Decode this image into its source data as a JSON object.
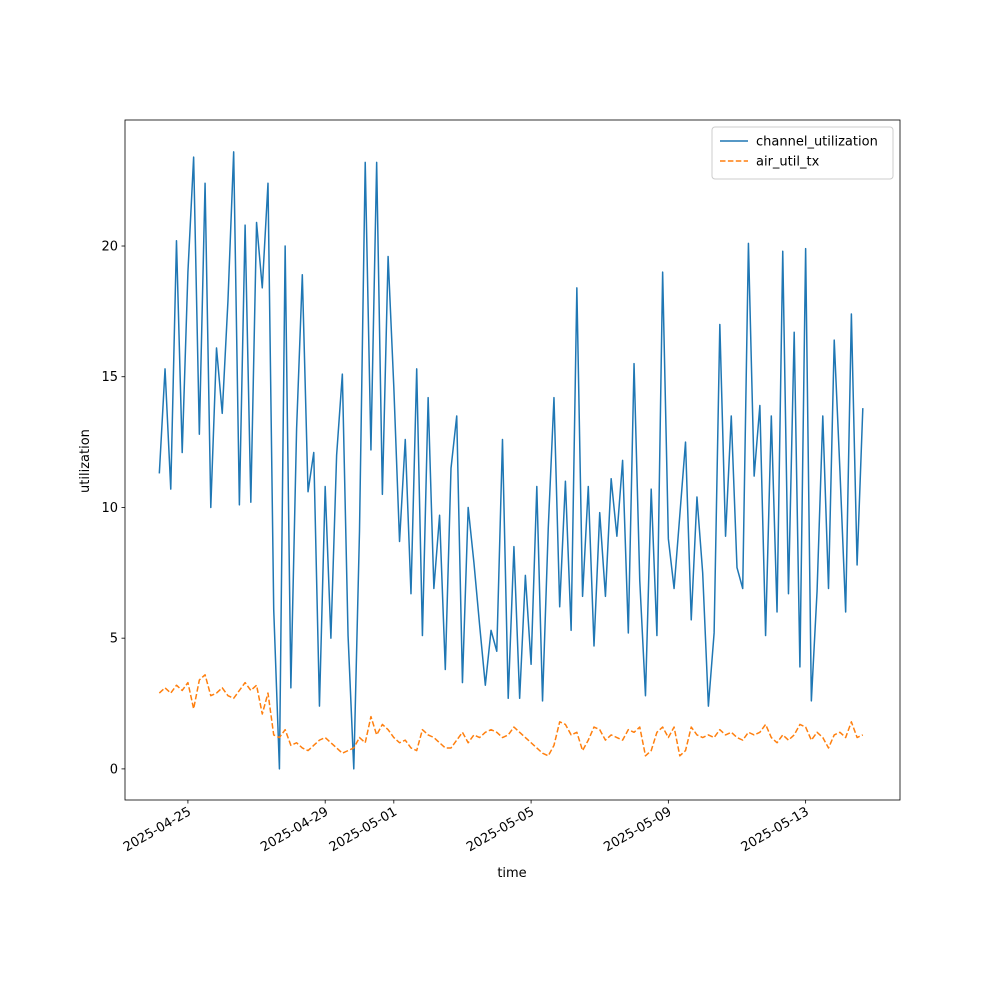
{
  "chart_data": {
    "type": "line",
    "xlabel": "time",
    "ylabel": "utilization",
    "x": [
      "2025-04-24T04:00",
      "2025-04-24T08:00",
      "2025-04-24T12:00",
      "2025-04-24T16:00",
      "2025-04-24T20:00",
      "2025-04-25T00:00",
      "2025-04-25T04:00",
      "2025-04-25T08:00",
      "2025-04-25T12:00",
      "2025-04-25T16:00",
      "2025-04-25T20:00",
      "2025-04-26T00:00",
      "2025-04-26T04:00",
      "2025-04-26T08:00",
      "2025-04-26T12:00",
      "2025-04-26T16:00",
      "2025-04-26T20:00",
      "2025-04-27T00:00",
      "2025-04-27T04:00",
      "2025-04-27T08:00",
      "2025-04-27T12:00",
      "2025-04-27T16:00",
      "2025-04-27T20:00",
      "2025-04-28T00:00",
      "2025-04-28T04:00",
      "2025-04-28T08:00",
      "2025-04-28T12:00",
      "2025-04-28T16:00",
      "2025-04-28T20:00",
      "2025-04-29T00:00",
      "2025-04-29T04:00",
      "2025-04-29T08:00",
      "2025-04-29T12:00",
      "2025-04-29T16:00",
      "2025-04-29T20:00",
      "2025-04-30T00:00",
      "2025-04-30T04:00",
      "2025-04-30T08:00",
      "2025-04-30T12:00",
      "2025-04-30T16:00",
      "2025-04-30T20:00",
      "2025-05-01T00:00",
      "2025-05-01T04:00",
      "2025-05-01T08:00",
      "2025-05-01T12:00",
      "2025-05-01T16:00",
      "2025-05-01T20:00",
      "2025-05-02T00:00",
      "2025-05-02T04:00",
      "2025-05-02T08:00",
      "2025-05-02T12:00",
      "2025-05-02T16:00",
      "2025-05-02T20:00",
      "2025-05-03T00:00",
      "2025-05-03T04:00",
      "2025-05-03T08:00",
      "2025-05-03T12:00",
      "2025-05-03T16:00",
      "2025-05-03T20:00",
      "2025-05-04T00:00",
      "2025-05-04T04:00",
      "2025-05-04T08:00",
      "2025-05-04T12:00",
      "2025-05-04T16:00",
      "2025-05-04T20:00",
      "2025-05-05T00:00",
      "2025-05-05T04:00",
      "2025-05-05T08:00",
      "2025-05-05T12:00",
      "2025-05-05T16:00",
      "2025-05-05T20:00",
      "2025-05-06T00:00",
      "2025-05-06T04:00",
      "2025-05-06T08:00",
      "2025-05-06T12:00",
      "2025-05-06T16:00",
      "2025-05-06T20:00",
      "2025-05-07T00:00",
      "2025-05-07T04:00",
      "2025-05-07T08:00",
      "2025-05-07T12:00",
      "2025-05-07T16:00",
      "2025-05-07T20:00",
      "2025-05-08T00:00",
      "2025-05-08T04:00",
      "2025-05-08T08:00",
      "2025-05-08T12:00",
      "2025-05-08T16:00",
      "2025-05-08T20:00",
      "2025-05-09T00:00",
      "2025-05-09T04:00",
      "2025-05-09T08:00",
      "2025-05-09T12:00",
      "2025-05-09T16:00",
      "2025-05-09T20:00",
      "2025-05-10T00:00",
      "2025-05-10T04:00",
      "2025-05-10T08:00",
      "2025-05-10T12:00",
      "2025-05-10T16:00",
      "2025-05-10T20:00",
      "2025-05-11T00:00",
      "2025-05-11T04:00",
      "2025-05-11T08:00",
      "2025-05-11T12:00",
      "2025-05-11T16:00",
      "2025-05-11T20:00",
      "2025-05-12T00:00",
      "2025-05-12T04:00",
      "2025-05-12T08:00",
      "2025-05-12T12:00",
      "2025-05-12T16:00",
      "2025-05-12T20:00",
      "2025-05-13T00:00",
      "2025-05-13T04:00",
      "2025-05-13T08:00",
      "2025-05-13T12:00",
      "2025-05-13T16:00",
      "2025-05-13T20:00",
      "2025-05-14T00:00",
      "2025-05-14T04:00",
      "2025-05-14T08:00",
      "2025-05-14T12:00",
      "2025-05-14T16:00"
    ],
    "series": [
      {
        "name": "channel_utilization",
        "color": "#1f77b4",
        "linestyle": "solid",
        "values": [
          11.3,
          15.3,
          10.7,
          20.2,
          12.1,
          19.0,
          23.4,
          12.8,
          22.4,
          10.0,
          16.1,
          13.6,
          17.9,
          23.6,
          10.1,
          20.8,
          10.2,
          20.9,
          18.4,
          22.4,
          6.1,
          0.0,
          20.0,
          3.1,
          13.0,
          18.9,
          10.6,
          12.1,
          2.4,
          10.8,
          5.0,
          12.0,
          15.1,
          5.1,
          0.0,
          9.1,
          23.2,
          12.2,
          23.2,
          10.5,
          19.6,
          14.6,
          8.7,
          12.6,
          6.7,
          15.3,
          5.1,
          14.2,
          6.9,
          9.7,
          3.8,
          11.5,
          13.5,
          3.3,
          10.0,
          7.9,
          5.5,
          3.2,
          5.3,
          4.5,
          12.6,
          2.7,
          8.5,
          2.7,
          7.4,
          4.0,
          10.8,
          2.6,
          9.2,
          14.2,
          6.2,
          11.0,
          5.3,
          18.4,
          6.6,
          10.8,
          4.7,
          9.8,
          6.6,
          11.1,
          8.9,
          11.8,
          5.2,
          15.5,
          7.2,
          2.8,
          10.7,
          5.1,
          19.0,
          8.8,
          6.9,
          9.7,
          12.5,
          5.7,
          10.4,
          7.5,
          2.4,
          5.2,
          17.0,
          8.9,
          13.5,
          7.7,
          6.9,
          20.1,
          11.2,
          13.9,
          5.1,
          13.5,
          6.0,
          19.8,
          6.7,
          16.7,
          3.9,
          19.9,
          2.6,
          6.8,
          13.5,
          6.9,
          16.4,
          11.4,
          6.0,
          17.4,
          7.8,
          13.8
        ]
      },
      {
        "name": "air_util_tx",
        "color": "#ff7f0e",
        "linestyle": "dashed",
        "values": [
          2.9,
          3.1,
          2.9,
          3.2,
          3.0,
          3.3,
          2.3,
          3.4,
          3.6,
          2.8,
          2.9,
          3.1,
          2.8,
          2.7,
          3.0,
          3.3,
          3.0,
          3.2,
          2.1,
          2.9,
          1.3,
          1.2,
          1.5,
          0.9,
          1.0,
          0.8,
          0.7,
          0.9,
          1.1,
          1.2,
          1.0,
          0.8,
          0.6,
          0.7,
          0.8,
          1.2,
          1.0,
          2.0,
          1.3,
          1.7,
          1.5,
          1.2,
          1.0,
          1.1,
          0.8,
          0.7,
          1.5,
          1.3,
          1.2,
          1.0,
          0.8,
          0.8,
          1.1,
          1.4,
          1.0,
          1.3,
          1.2,
          1.4,
          1.5,
          1.4,
          1.2,
          1.3,
          1.6,
          1.4,
          1.2,
          1.0,
          0.8,
          0.6,
          0.5,
          0.9,
          1.8,
          1.7,
          1.3,
          1.4,
          0.7,
          1.1,
          1.6,
          1.5,
          1.1,
          1.3,
          1.2,
          1.1,
          1.5,
          1.4,
          1.6,
          0.5,
          0.7,
          1.4,
          1.6,
          1.2,
          1.6,
          0.5,
          0.7,
          1.6,
          1.3,
          1.2,
          1.3,
          1.2,
          1.5,
          1.3,
          1.4,
          1.2,
          1.1,
          1.4,
          1.3,
          1.4,
          1.7,
          1.2,
          1.0,
          1.3,
          1.1,
          1.3,
          1.7,
          1.6,
          1.1,
          1.4,
          1.2,
          0.8,
          1.3,
          1.4,
          1.2,
          1.8,
          1.2,
          1.3
        ]
      }
    ],
    "xlim": [
      "2025-04-23T04:00",
      "2025-05-15T18:00"
    ],
    "xticks": [
      "2025-04-25",
      "2025-04-29",
      "2025-05-01",
      "2025-05-05",
      "2025-05-09",
      "2025-05-13"
    ],
    "ylim": [
      -1.19,
      24.82
    ],
    "yticks": [
      0,
      5,
      10,
      15,
      20
    ],
    "grid": false,
    "legend": "upper right"
  }
}
